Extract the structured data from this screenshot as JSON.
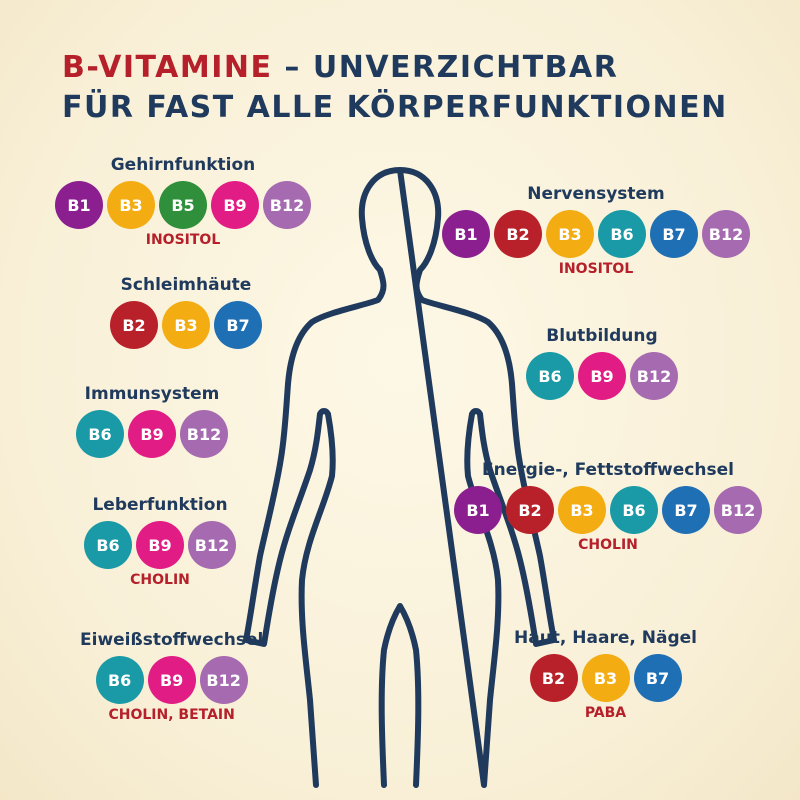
{
  "title": {
    "red_part": "B-VITAMINE",
    "rest_line1": " – UNVERZICHTBAR",
    "line2": "FÜR FAST ALLE KÖRPERFUNKTIONEN"
  },
  "colors": {
    "B1": "#8c1f8f",
    "B2": "#b8212a",
    "B3": "#f3ad13",
    "B5": "#2f8f3a",
    "B6": "#1a9aa6",
    "B7": "#1f6fb5",
    "B9": "#e21c85",
    "B12": "#a56ab0",
    "title_red": "#b5202a",
    "title_blue": "#1f3a5c",
    "silhouette": "#1f3a5c"
  },
  "groups": [
    {
      "id": "gehirnfunktion",
      "name": "Gehirnfunktion",
      "vitamins": [
        "B1",
        "B3",
        "B5",
        "B9",
        "B12"
      ],
      "extra": "INOSITOL"
    },
    {
      "id": "schleimhaeute",
      "name": "Schleimhäute",
      "vitamins": [
        "B2",
        "B3",
        "B7"
      ],
      "extra": ""
    },
    {
      "id": "immunsystem",
      "name": "Immunsystem",
      "vitamins": [
        "B6",
        "B9",
        "B12"
      ],
      "extra": ""
    },
    {
      "id": "leberfunktion",
      "name": "Leberfunktion",
      "vitamins": [
        "B6",
        "B9",
        "B12"
      ],
      "extra": "CHOLIN"
    },
    {
      "id": "eiweissstoffwechsel",
      "name": "Eiweißstoffwechsel",
      "vitamins": [
        "B6",
        "B9",
        "B12"
      ],
      "extra": "CHOLIN, BETAIN"
    },
    {
      "id": "nervensystem",
      "name": "Nervensystem",
      "vitamins": [
        "B1",
        "B2",
        "B3",
        "B6",
        "B7",
        "B12"
      ],
      "extra": "INOSITOL"
    },
    {
      "id": "blutbildung",
      "name": "Blutbildung",
      "vitamins": [
        "B6",
        "B9",
        "B12"
      ],
      "extra": ""
    },
    {
      "id": "energie-fettstoffwechsel",
      "name": "Energie-, Fettstoffwechsel",
      "vitamins": [
        "B1",
        "B2",
        "B3",
        "B6",
        "B7",
        "B12"
      ],
      "extra": "CHOLIN"
    },
    {
      "id": "haut-haare-naegel",
      "name": "Haut, Haare, Nägel",
      "vitamins": [
        "B2",
        "B3",
        "B7"
      ],
      "extra": "PABA"
    }
  ]
}
